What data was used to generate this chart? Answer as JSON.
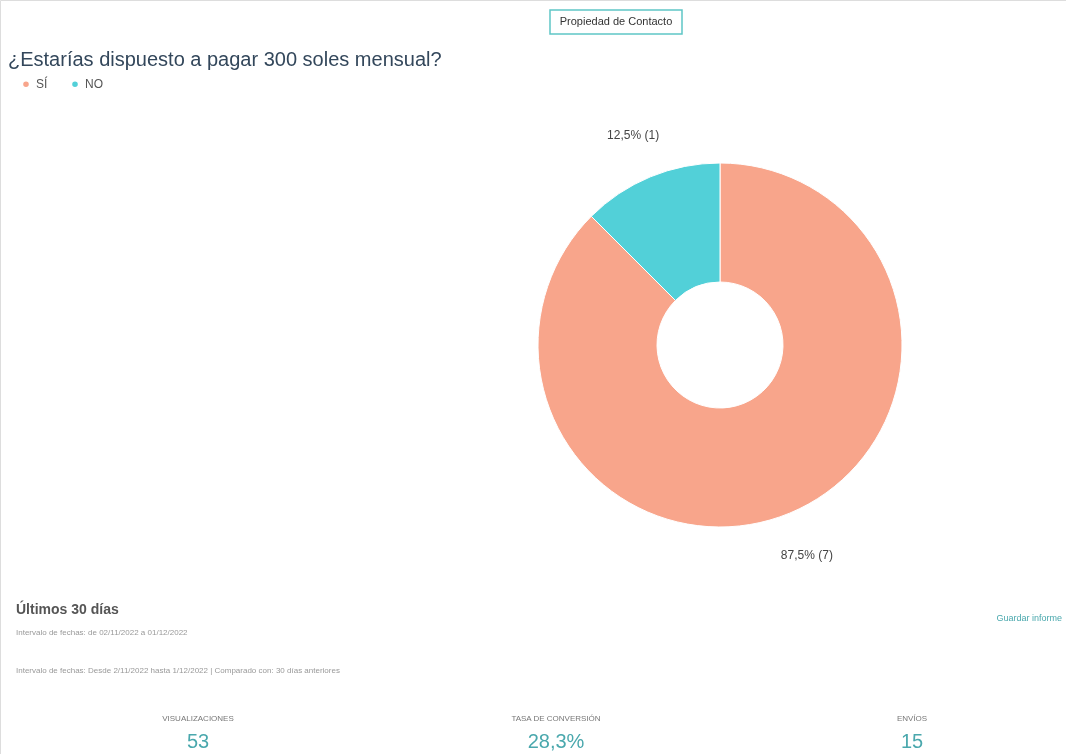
{
  "chart_data": {
    "type": "donut",
    "title": "¿Estarías dispuesto a pagar 300 soles mensual?",
    "categories": [
      "SÍ",
      "NO"
    ],
    "values": [
      87.5,
      12.5
    ],
    "colors": [
      "#f8a58b",
      "#52d0d8"
    ],
    "value_labels": [
      "87,5% (7)",
      "12,5% (1)"
    ],
    "legend": "top left",
    "annotations": [
      "Propiedad de Contacto",
      "Últimos 30 días",
      "Intervalo de fechas: de 02/11/2022 a 01/12/2022",
      "Intervalo de fechas: Desde 2/11/2022 hasta 1/12/2022 | Comparado con: 30 días anteriores",
      "Guardar informe",
      "VISUALIZACIONES",
      "53",
      "TASA DE CONVERSIÓN",
      "28,3%",
      "ENVÍOS",
      "15"
    ]
  }
}
